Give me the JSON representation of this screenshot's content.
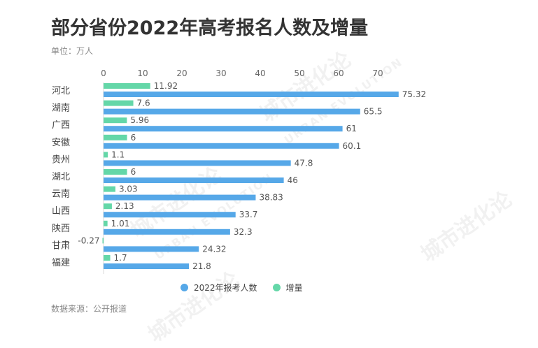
{
  "header": {
    "title": "部分省份2022年高考报名人数及增量",
    "unit": "单位：万人"
  },
  "footer": {
    "source": "数据来源：公开报道"
  },
  "watermark": {
    "text": "城市进化论",
    "sub": "URBAN EVOLUTION"
  },
  "colors": {
    "series_registrants": "#56a8e8",
    "series_increase": "#64d7a8",
    "axis_text": "#555555",
    "label_text": "#555555",
    "grid": "#eeeeee"
  },
  "chart_data": {
    "type": "bar",
    "orientation": "horizontal",
    "categories": [
      "河北",
      "湖南",
      "广西",
      "安徽",
      "贵州",
      "湖北",
      "云南",
      "山西",
      "陕西",
      "甘肃",
      "福建"
    ],
    "series": [
      {
        "name": "增量",
        "values": [
          11.92,
          7.6,
          5.96,
          6,
          1.1,
          6,
          3.03,
          2.13,
          1.01,
          -0.27,
          1.7
        ]
      },
      {
        "name": "2022年报考人数",
        "values": [
          75.32,
          65.5,
          61,
          60.1,
          47.8,
          46,
          38.83,
          33.7,
          32.3,
          24.32,
          21.8
        ]
      }
    ],
    "xlim": [
      0,
      78
    ],
    "xticks": [
      0,
      10,
      20,
      30,
      40,
      50,
      60,
      70
    ],
    "xaxis_position": "top",
    "grid": false,
    "legend_position": "bottom-center",
    "legend": [
      {
        "name": "2022年报考人数",
        "color": "#56a8e8"
      },
      {
        "name": "增量",
        "color": "#64d7a8"
      }
    ]
  }
}
